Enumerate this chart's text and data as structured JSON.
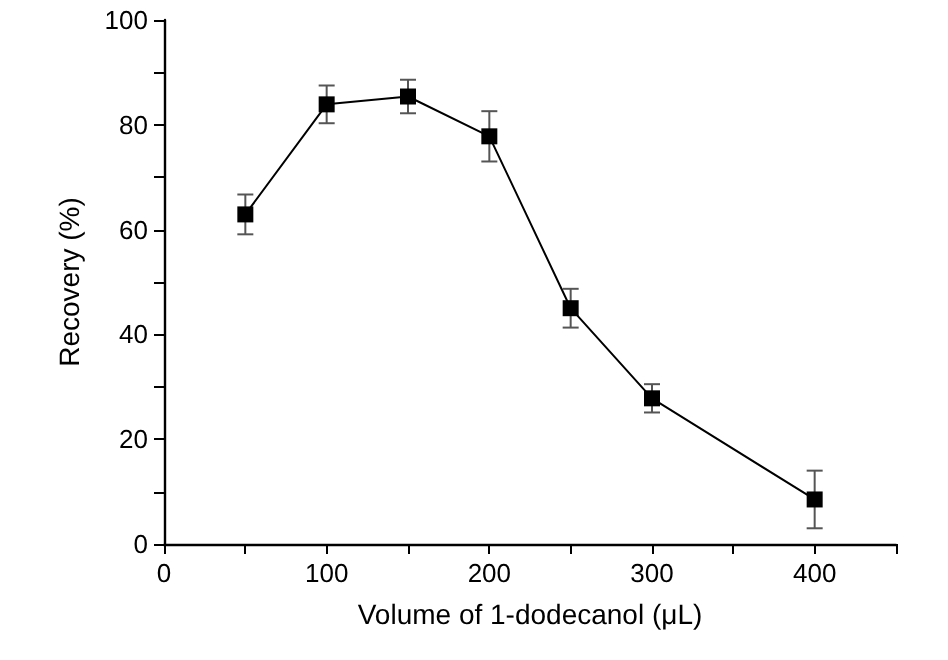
{
  "chart_data": {
    "type": "line",
    "xlabel": "Volume of 1-dodecanol (μL)",
    "ylabel": "Recovery (%)",
    "x": [
      50,
      100,
      150,
      200,
      250,
      300,
      400
    ],
    "series": [
      {
        "color": "#000000",
        "values": [
          62.9,
          83.9,
          85.4,
          77.8,
          45.0,
          27.8,
          8.5
        ],
        "errors": [
          3.8,
          3.6,
          3.2,
          4.8,
          3.7,
          2.7,
          5.5
        ]
      }
    ],
    "xlim": [
      0,
      450
    ],
    "xticks": [
      0,
      {
        "value": 50,
        "label": null
      },
      100,
      {
        "value": 150,
        "label": null
      },
      200,
      {
        "value": 250,
        "label": null
      },
      300,
      {
        "value": 350,
        "label": null
      },
      400,
      {
        "value": 450,
        "label": null
      }
    ],
    "ylim": [
      0,
      100
    ],
    "yticks": [
      0,
      {
        "value": 10,
        "label": null
      },
      20,
      {
        "value": 30,
        "label": null
      },
      40,
      {
        "value": 50,
        "label": null
      },
      60,
      {
        "value": 70,
        "label": null
      },
      80,
      {
        "value": 90,
        "label": null
      },
      100
    ],
    "grid": false,
    "marker": "square",
    "line_style": "solid"
  }
}
